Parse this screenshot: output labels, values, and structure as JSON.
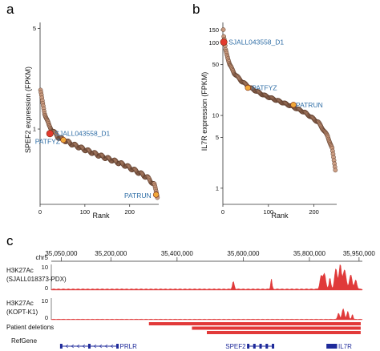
{
  "colors": {
    "point_fill": "#c9977a",
    "point_stroke": "#5a3a2a",
    "highlight_red": "#e23a2e",
    "highlight_orange": "#f1a83a",
    "callout_text": "#2f6ea6",
    "track_red": "#e03a3a",
    "deletion_red": "#e23a3a",
    "gene_blue": "#1e2a9a"
  },
  "chart_data": [
    {
      "type": "scatter",
      "panel": "a",
      "xlabel": "Rank",
      "ylabel": "SPEF2 expression (FPKM)",
      "log_y": true,
      "xlim": [
        0,
        265
      ],
      "ylim": [
        0.3,
        5.5
      ],
      "xticks": [
        0,
        100,
        200
      ],
      "yticks": [
        1,
        5
      ],
      "n_points": 262,
      "curve_shape": {
        "x": [
          1,
          5,
          10,
          20,
          40,
          70,
          100,
          130,
          160,
          190,
          220,
          240,
          255,
          262
        ],
        "y": [
          1.85,
          1.55,
          1.3,
          1.05,
          0.88,
          0.79,
          0.72,
          0.66,
          0.61,
          0.56,
          0.5,
          0.46,
          0.41,
          0.34
        ]
      },
      "highlights": [
        {
          "label": "SJALL043558_D1",
          "x": 22,
          "y": 0.93,
          "color": "red"
        },
        {
          "label": "PATFYZ",
          "x": 52,
          "y": 0.84,
          "color": "orange"
        },
        {
          "label": "PATRUN",
          "x": 259,
          "y": 0.35,
          "color": "orange"
        }
      ]
    },
    {
      "type": "scatter",
      "panel": "b",
      "xlabel": "Rank",
      "ylabel": "IL7R expression (FPKM)",
      "log_y": true,
      "xlim": [
        0,
        250
      ],
      "ylim": [
        0.6,
        190
      ],
      "xticks": [
        0,
        100,
        200
      ],
      "yticks": [
        1,
        5,
        10,
        50,
        100,
        150
      ],
      "n_points": 247,
      "curve_shape": {
        "x": [
          1,
          2,
          4,
          6,
          10,
          15,
          25,
          40,
          60,
          90,
          120,
          150,
          180,
          210,
          230,
          240,
          247
        ],
        "y": [
          150,
          120,
          100,
          80,
          65,
          50,
          38,
          30,
          24,
          19,
          16,
          13.5,
          11,
          8,
          5.2,
          3.5,
          1.8
        ]
      },
      "highlights": [
        {
          "label": "SJALL043558_D1",
          "x": 2,
          "y": 102,
          "color": "red"
        },
        {
          "label": "PATFYZ",
          "x": 55,
          "y": 24,
          "color": "orange"
        },
        {
          "label": "PATRUN",
          "x": 155,
          "y": 14,
          "color": "orange"
        }
      ]
    },
    {
      "type": "area",
      "panel": "c",
      "chrom_label": "chr5",
      "coordinate_ticks": [
        "35,050,000",
        "35,200,000",
        "35,400,000",
        "35,600,000",
        "35,800,000",
        "35,950,000"
      ],
      "coordinate_range": [
        35020000,
        35960000
      ],
      "coordinate_tick_values": [
        35050000,
        35200000,
        35400000,
        35600000,
        35800000,
        35950000
      ],
      "tracks": [
        {
          "name": "H3K27Ac (SJALL018373-PDX)",
          "label_lines": [
            "H3K27Ac",
            "(SJALL018373-PDX)"
          ],
          "scale_max": "10",
          "scale_min": "0",
          "baseline": 0.5,
          "peaks": [
            {
              "pos": 35570000,
              "height": 3.0,
              "width": 4000
            },
            {
              "pos": 35685000,
              "height": 4.2,
              "width": 3000
            },
            {
              "pos": 35835000,
              "height": 5.0,
              "width": 5000
            },
            {
              "pos": 35845000,
              "height": 6.2,
              "width": 6000
            },
            {
              "pos": 35862000,
              "height": 4.5,
              "width": 4000
            },
            {
              "pos": 35880000,
              "height": 8.0,
              "width": 6000
            },
            {
              "pos": 35893000,
              "height": 9.5,
              "width": 5000
            },
            {
              "pos": 35906000,
              "height": 7.6,
              "width": 7000
            },
            {
              "pos": 35925000,
              "height": 5.6,
              "width": 6000
            },
            {
              "pos": 35940000,
              "height": 3.6,
              "width": 5000
            }
          ]
        },
        {
          "name": "H3K27Ac (KOPT-K1)",
          "label_lines": [
            "H3K27Ac",
            "(KOPT-K1)"
          ],
          "scale_max": "10",
          "scale_min": "0",
          "baseline": 0.3,
          "peaks": [
            {
              "pos": 35888000,
              "height": 3.0,
              "width": 4000
            },
            {
              "pos": 35902000,
              "height": 5.0,
              "width": 5000
            },
            {
              "pos": 35916000,
              "height": 3.8,
              "width": 4000
            },
            {
              "pos": 35930000,
              "height": 2.4,
              "width": 3000
            }
          ]
        }
      ],
      "deletions_label": "Patient deletions",
      "deletions": [
        {
          "start": 35315000,
          "end": 35955000
        },
        {
          "start": 35445000,
          "end": 35955000
        },
        {
          "start": 35490000,
          "end": 35955000
        }
      ],
      "refgene_label": "RefGene",
      "genes": [
        {
          "name": "PRLR",
          "start": 35050000,
          "end": 35220000,
          "strand": "-"
        },
        {
          "name": "SPEF2",
          "start": 35615000,
          "end": 35690000,
          "strand": "+"
        },
        {
          "name": "IL7R",
          "start": 35855000,
          "end": 35880000,
          "strand": "+"
        }
      ]
    }
  ],
  "panel_letters": {
    "a": "a",
    "b": "b",
    "c": "c"
  }
}
